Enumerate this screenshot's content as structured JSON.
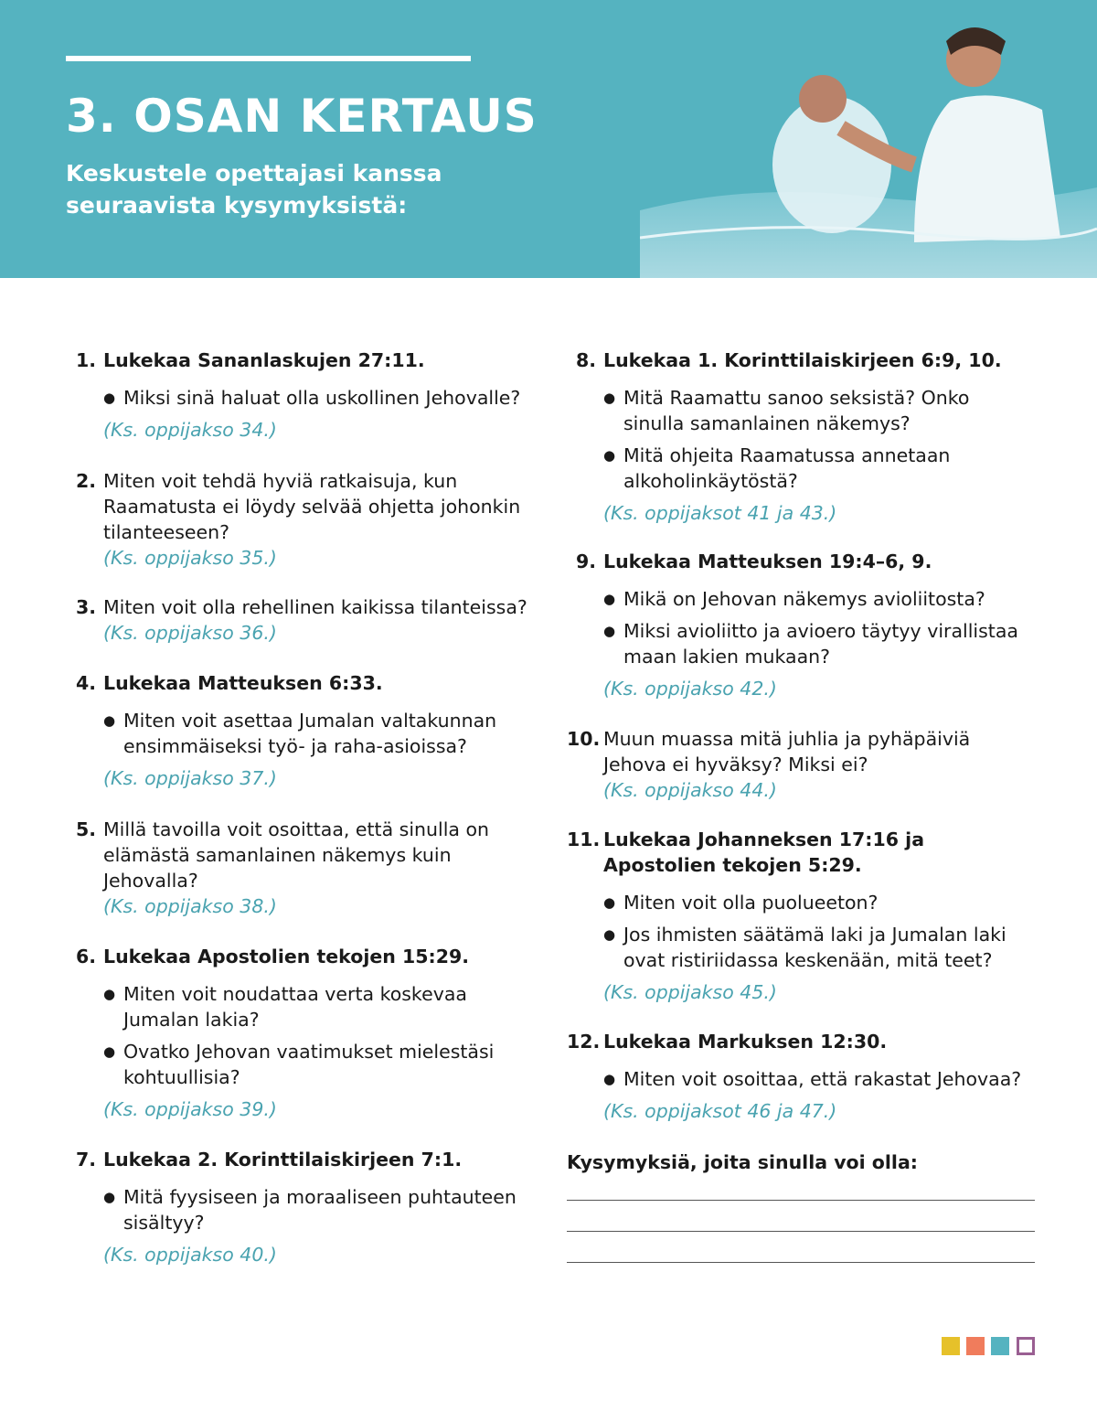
{
  "header": {
    "title": "3. OSAN KERTAUS",
    "subtitle": "Keskustele opettajasi kanssa seuraavista kysymyksistä:"
  },
  "left": [
    {
      "num": "1.",
      "text": "Lukekaa Sananlaskujen 27:11.",
      "bold": true,
      "bullets": [
        "Miksi sinä haluat olla uskollinen Jehovalle?"
      ],
      "ref": "(Ks. oppijakso 34.)"
    },
    {
      "num": "2.",
      "text": "Miten voit tehdä hyviä ratkaisuja, kun Raamatusta ei löydy selvää ohjetta johonkin tilanteeseen?",
      "bold": false,
      "bullets": [],
      "ref": "(Ks. oppijakso 35.)"
    },
    {
      "num": "3.",
      "text": "Miten voit olla rehellinen kaikissa tilanteissa?",
      "bold": false,
      "bullets": [],
      "ref": "(Ks. oppijakso 36.)"
    },
    {
      "num": "4.",
      "text": "Lukekaa Matteuksen 6:33.",
      "bold": true,
      "bullets": [
        "Miten voit asettaa Jumalan valtakunnan ensimmäiseksi työ- ja raha-asioissa?"
      ],
      "ref": "(Ks. oppijakso 37.)"
    },
    {
      "num": "5.",
      "text": "Millä tavoilla voit osoittaa, että sinulla on elämästä samanlainen näkemys kuin Jehovalla?",
      "bold": false,
      "bullets": [],
      "ref": "(Ks. oppijakso 38.)"
    },
    {
      "num": "6.",
      "text": "Lukekaa Apostolien tekojen 15:29.",
      "bold": true,
      "bullets": [
        "Miten voit noudattaa verta koskevaa Jumalan lakia?",
        "Ovatko Jehovan vaatimukset mielestäsi kohtuullisia?"
      ],
      "ref": "(Ks. oppijakso 39.)"
    },
    {
      "num": "7.",
      "text": "Lukekaa 2. Korinttilaiskirjeen 7:1.",
      "bold": true,
      "bullets": [
        "Mitä fyysiseen ja moraaliseen puhtauteen sisältyy?"
      ],
      "ref": "(Ks. oppijakso 40.)"
    }
  ],
  "right": [
    {
      "num": "8.",
      "text": "Lukekaa 1. Korinttilaiskirjeen 6:9, 10.",
      "bold": true,
      "bullets": [
        "Mitä Raamattu sanoo seksistä? Onko sinulla samanlainen näkemys?",
        "Mitä ohjeita Raamatussa annetaan alkoholinkäytöstä?"
      ],
      "ref": "(Ks. oppijaksot 41 ja 43.)"
    },
    {
      "num": "9.",
      "text": "Lukekaa Matteuksen 19:4–6, 9.",
      "bold": true,
      "bullets": [
        "Mikä on Jehovan näkemys avioliitosta?",
        "Miksi avioliitto ja avioero täytyy virallistaa maan lakien mukaan?"
      ],
      "ref": "(Ks. oppijakso 42.)"
    },
    {
      "num": "10.",
      "text": "Muun muassa mitä juhlia ja pyhäpäiviä Jehova ei hyväksy? Miksi ei?",
      "bold": false,
      "bullets": [],
      "ref": "(Ks. oppijakso 44.)"
    },
    {
      "num": "11.",
      "text": "Lukekaa Johanneksen 17:16 ja Apostolien tekojen 5:29.",
      "bold": true,
      "bullets": [
        "Miten voit olla puolueeton?",
        "Jos ihmisten säätämä laki ja Jumalan laki ovat ristiriidassa keskenään, mitä teet?"
      ],
      "ref": "(Ks. oppijakso 45.)"
    },
    {
      "num": "12.",
      "text": "Lukekaa Markuksen 12:30.",
      "bold": true,
      "bullets": [
        "Miten voit osoittaa, että rakastat Jehovaa?"
      ],
      "ref": "(Ks. oppijaksot 46 ja 47.)"
    }
  ],
  "notes": {
    "label": "Kysymyksiä, joita sinulla voi olla:"
  },
  "colors": {
    "header": "#55b3c0",
    "ref": "#4aa3b0",
    "squares": [
      "#e6c12a",
      "#f07c5c",
      "#55b3c0",
      "#9a5f92"
    ]
  }
}
